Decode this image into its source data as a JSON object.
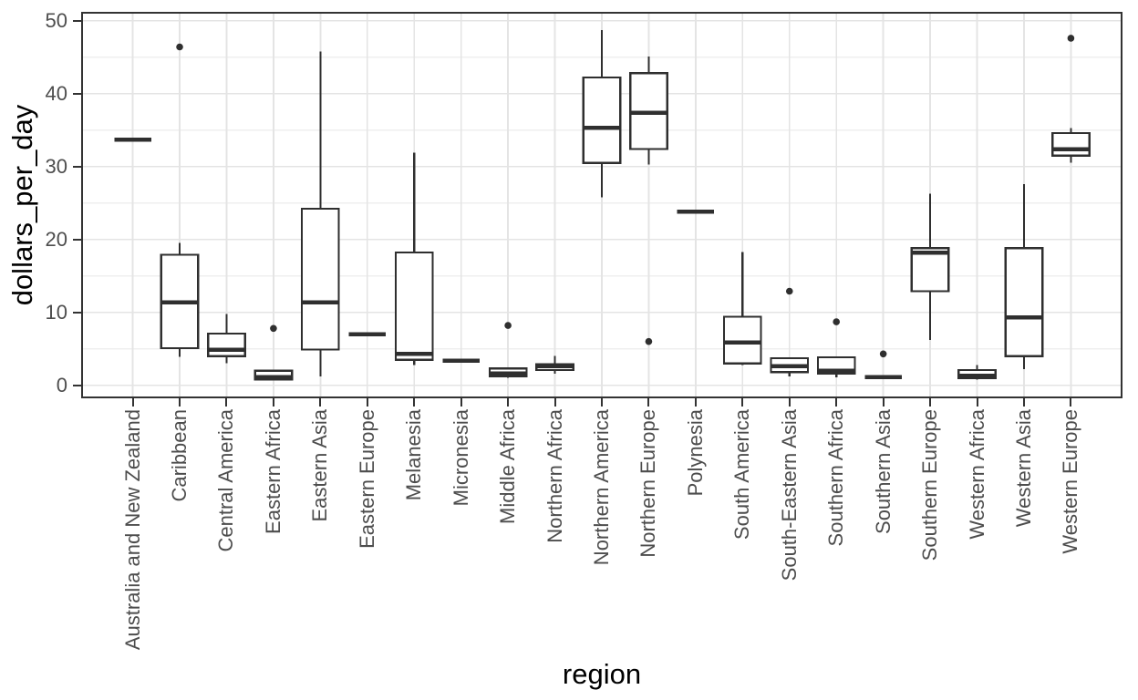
{
  "chart_data": {
    "type": "boxplot",
    "title": "",
    "xlabel": "region",
    "ylabel": "dollars_per_day",
    "ylim": [
      -1.8,
      51.2
    ],
    "yticks": [
      0,
      10,
      20,
      30,
      40,
      50
    ],
    "yminor": [
      5,
      15,
      25,
      35,
      45
    ],
    "grid": "horizontal major+minor, vertical major at each category; light grey on white; black panel border (theme_bw style)",
    "legend": "none",
    "categories": [
      "Australia and New Zealand",
      "Caribbean",
      "Central America",
      "Eastern Africa",
      "Eastern Asia",
      "Eastern Europe",
      "Melanesia",
      "Micronesia",
      "Middle Africa",
      "Northern Africa",
      "Northern America",
      "Northern Europe",
      "Polynesia",
      "South America",
      "South-Eastern Asia",
      "Southern Africa",
      "Southern Asia",
      "Southern Europe",
      "Western Africa",
      "Western Asia",
      "Western Europe"
    ],
    "boxes": [
      {
        "category": "Australia and New Zealand",
        "low": 33.7,
        "q1": 33.7,
        "median": 33.7,
        "q3": 33.7,
        "high": 33.7,
        "outliers": []
      },
      {
        "category": "Caribbean",
        "low": 3.9,
        "q1": 5.1,
        "median": 11.4,
        "q3": 17.9,
        "high": 19.5,
        "outliers": [
          46.4
        ]
      },
      {
        "category": "Central America",
        "low": 3.0,
        "q1": 4.0,
        "median": 4.9,
        "q3": 7.1,
        "high": 9.8,
        "outliers": []
      },
      {
        "category": "Eastern Africa",
        "low": 0.7,
        "q1": 0.8,
        "median": 1.1,
        "q3": 2.0,
        "high": 2.1,
        "outliers": [
          7.8
        ]
      },
      {
        "category": "Eastern Asia",
        "low": 1.2,
        "q1": 4.9,
        "median": 11.4,
        "q3": 24.2,
        "high": 45.8,
        "outliers": []
      },
      {
        "category": "Eastern Europe",
        "low": 7.0,
        "q1": 7.0,
        "median": 7.0,
        "q3": 7.0,
        "high": 7.0,
        "outliers": []
      },
      {
        "category": "Melanesia",
        "low": 2.8,
        "q1": 3.5,
        "median": 4.3,
        "q3": 18.2,
        "high": 31.9,
        "outliers": []
      },
      {
        "category": "Micronesia",
        "low": 3.4,
        "q1": 3.4,
        "median": 3.4,
        "q3": 3.4,
        "high": 3.4,
        "outliers": []
      },
      {
        "category": "Middle Africa",
        "low": 1.0,
        "q1": 1.25,
        "median": 1.6,
        "q3": 2.3,
        "high": 2.4,
        "outliers": [
          8.2
        ]
      },
      {
        "category": "Northern Africa",
        "low": 1.6,
        "q1": 2.1,
        "median": 2.6,
        "q3": 2.9,
        "high": 4.0,
        "outliers": []
      },
      {
        "category": "Northern America",
        "low": 25.8,
        "q1": 30.5,
        "median": 35.3,
        "q3": 42.2,
        "high": 48.7,
        "outliers": []
      },
      {
        "category": "Northern Europe",
        "low": 30.3,
        "q1": 32.4,
        "median": 37.4,
        "q3": 42.8,
        "high": 45.1,
        "outliers": [
          6.0
        ]
      },
      {
        "category": "Polynesia",
        "low": 23.8,
        "q1": 23.8,
        "median": 23.8,
        "q3": 23.8,
        "high": 23.8,
        "outliers": []
      },
      {
        "category": "South America",
        "low": 2.8,
        "q1": 3.0,
        "median": 5.9,
        "q3": 9.4,
        "high": 18.3,
        "outliers": []
      },
      {
        "category": "South-Eastern Asia",
        "low": 1.2,
        "q1": 1.8,
        "median": 2.6,
        "q3": 3.7,
        "high": 3.7,
        "outliers": [
          12.9
        ]
      },
      {
        "category": "Southern Africa",
        "low": 1.1,
        "q1": 1.6,
        "median": 2.0,
        "q3": 3.85,
        "high": 3.85,
        "outliers": [
          8.7
        ]
      },
      {
        "category": "Southern Asia",
        "low": 1.1,
        "q1": 1.1,
        "median": 1.1,
        "q3": 1.1,
        "high": 1.1,
        "outliers": [
          4.3
        ]
      },
      {
        "category": "Southern Europe",
        "low": 6.2,
        "q1": 12.9,
        "median": 18.2,
        "q3": 18.8,
        "high": 26.3,
        "outliers": []
      },
      {
        "category": "Western Africa",
        "low": 0.8,
        "q1": 1.0,
        "median": 1.3,
        "q3": 2.1,
        "high": 2.75,
        "outliers": []
      },
      {
        "category": "Western Asia",
        "low": 2.2,
        "q1": 4.0,
        "median": 9.3,
        "q3": 18.8,
        "high": 27.6,
        "outliers": []
      },
      {
        "category": "Western Europe",
        "low": 30.5,
        "q1": 31.5,
        "median": 32.4,
        "q3": 34.6,
        "high": 35.3,
        "outliers": [
          47.6
        ]
      }
    ],
    "colors": {
      "box_stroke": "#2f2f2f",
      "box_fill": "#ffffff",
      "outlier": "#2f2f2f",
      "grid_major": "#e4e4e4",
      "grid_minor": "#efefef",
      "panel_border": "#333333",
      "tick_label": "#4d4d4d",
      "axis_title": "#000000",
      "background": "#ffffff"
    }
  }
}
